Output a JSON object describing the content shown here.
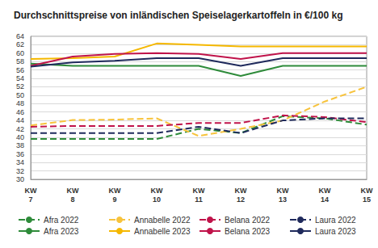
{
  "chart_data": {
    "type": "line",
    "title": "Durchschnittspreise von inländischen Speiselagerkartoffeln in €/100 kg",
    "categories": [
      "KW 7",
      "KW 8",
      "KW 9",
      "KW 10",
      "KW 11",
      "KW 12",
      "KW 13",
      "KW 14",
      "KW 15"
    ],
    "ylim": [
      30,
      64
    ],
    "yticks": [
      30,
      32,
      34,
      36,
      38,
      40,
      42,
      44,
      46,
      48,
      50,
      52,
      54,
      56,
      58,
      60,
      62,
      64
    ],
    "grid": true,
    "legend": "bottom",
    "series": [
      {
        "name": "Afra 2022",
        "color": "#2e8b3a",
        "line_style": "dashed",
        "values": [
          39.6,
          39.6,
          39.6,
          39.6,
          42.0,
          41.0,
          45.0,
          44.5,
          43.0
        ]
      },
      {
        "name": "Annabelle 2022",
        "color": "#f7c33c",
        "line_style": "dashed",
        "values": [
          42.8,
          44.1,
          44.2,
          44.5,
          40.3,
          42.0,
          44.0,
          48.5,
          52.0
        ]
      },
      {
        "name": "Belana 2022",
        "color": "#c0134a",
        "line_style": "dashed",
        "values": [
          42.5,
          42.7,
          42.7,
          42.7,
          43.4,
          43.4,
          45.2,
          44.8,
          43.6
        ]
      },
      {
        "name": "Laura 2022",
        "color": "#1f2a5c",
        "line_style": "dashed",
        "values": [
          41.0,
          41.0,
          41.0,
          41.0,
          42.5,
          41.0,
          44.0,
          44.5,
          44.5
        ]
      },
      {
        "name": "Afra 2023",
        "color": "#2e8b3a",
        "line_style": "solid",
        "values": [
          57.5,
          57.0,
          57.0,
          57.0,
          57.0,
          54.6,
          57.0,
          57.0,
          57.0
        ]
      },
      {
        "name": "Annabelle 2023",
        "color": "#f5b800",
        "line_style": "solid",
        "values": [
          58.6,
          58.8,
          59.2,
          62.3,
          62.0,
          61.6,
          61.6,
          61.6,
          61.6
        ]
      },
      {
        "name": "Belana 2023",
        "color": "#c0134a",
        "line_style": "solid",
        "values": [
          57.0,
          59.2,
          59.8,
          60.0,
          59.8,
          58.6,
          60.0,
          60.0,
          60.0
        ]
      },
      {
        "name": "Laura 2023",
        "color": "#1f2a5c",
        "line_style": "solid",
        "values": [
          56.8,
          57.8,
          58.2,
          58.8,
          58.8,
          57.0,
          58.8,
          58.8,
          58.8
        ]
      }
    ]
  }
}
